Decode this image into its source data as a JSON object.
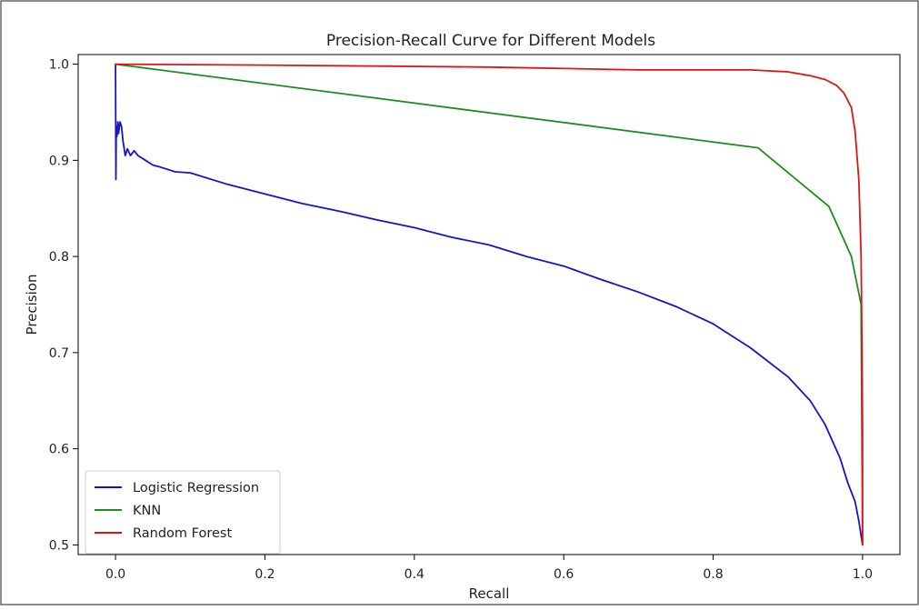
{
  "chart_data": {
    "type": "line",
    "title": "Precision-Recall Curve for Different Models",
    "xlabel": "Recall",
    "ylabel": "Precision",
    "xlim": [
      -0.05,
      1.05
    ],
    "ylim": [
      0.49,
      1.01
    ],
    "xticks": [
      0.0,
      0.2,
      0.4,
      0.6,
      0.8,
      1.0
    ],
    "xtick_labels": [
      "0.0",
      "0.2",
      "0.4",
      "0.6",
      "0.8",
      "1.0"
    ],
    "yticks": [
      0.5,
      0.6,
      0.7,
      0.8,
      0.9,
      1.0
    ],
    "ytick_labels": [
      "0.5",
      "0.6",
      "0.7",
      "0.8",
      "0.9",
      "1.0"
    ],
    "grid": false,
    "legend": "lower-left",
    "series": [
      {
        "name": "Logistic Regression",
        "color": "#1515c8",
        "x": [
          0.0,
          0.0005,
          0.001,
          0.002,
          0.003,
          0.004,
          0.006,
          0.008,
          0.01,
          0.013,
          0.016,
          0.02,
          0.025,
          0.03,
          0.04,
          0.05,
          0.06,
          0.08,
          0.1,
          0.15,
          0.2,
          0.25,
          0.3,
          0.35,
          0.4,
          0.45,
          0.5,
          0.55,
          0.6,
          0.65,
          0.7,
          0.75,
          0.8,
          0.85,
          0.9,
          0.93,
          0.95,
          0.97,
          0.98,
          0.99,
          0.995,
          1.0
        ],
        "y": [
          1.0,
          0.88,
          0.935,
          0.925,
          0.94,
          0.928,
          0.94,
          0.935,
          0.92,
          0.905,
          0.912,
          0.905,
          0.91,
          0.905,
          0.9,
          0.895,
          0.893,
          0.888,
          0.887,
          0.875,
          0.865,
          0.855,
          0.847,
          0.838,
          0.83,
          0.82,
          0.812,
          0.8,
          0.79,
          0.776,
          0.763,
          0.748,
          0.73,
          0.705,
          0.675,
          0.65,
          0.625,
          0.59,
          0.565,
          0.545,
          0.525,
          0.5
        ]
      },
      {
        "name": "KNN",
        "color": "#1f8a1f",
        "x": [
          0.0,
          0.86,
          0.955,
          0.985,
          0.998,
          1.0
        ],
        "y": [
          1.0,
          0.913,
          0.852,
          0.8,
          0.75,
          0.5
        ]
      },
      {
        "name": "Random Forest",
        "color": "#e01414",
        "x": [
          0.0,
          0.2,
          0.5,
          0.7,
          0.85,
          0.9,
          0.93,
          0.95,
          0.965,
          0.975,
          0.985,
          0.99,
          0.995,
          0.998,
          0.999,
          1.0,
          1.0
        ],
        "y": [
          1.0,
          0.999,
          0.997,
          0.994,
          0.994,
          0.992,
          0.988,
          0.984,
          0.978,
          0.97,
          0.955,
          0.93,
          0.88,
          0.8,
          0.72,
          0.62,
          0.5
        ]
      }
    ]
  }
}
